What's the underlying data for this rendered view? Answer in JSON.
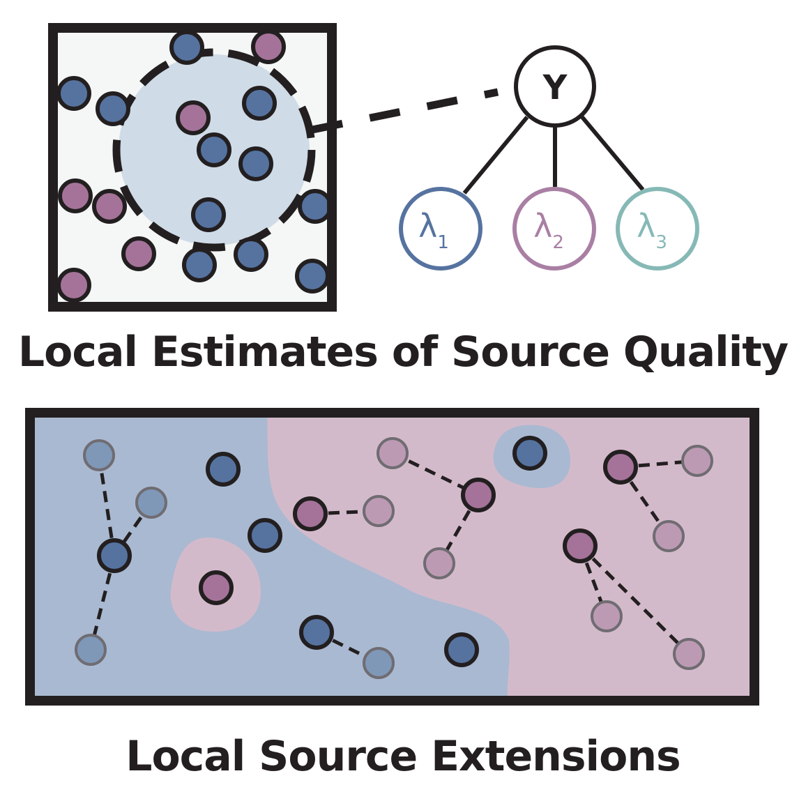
{
  "titles": {
    "top": "Local Estimates of Source Quality",
    "bottom": "Local Source Extensions"
  },
  "graph": {
    "root": "Y",
    "sources": [
      {
        "symbol": "λ",
        "subscript": "1",
        "color": "#5673a0"
      },
      {
        "symbol": "λ",
        "subscript": "2",
        "color": "#a97fa4"
      },
      {
        "symbol": "λ",
        "subscript": "3",
        "color": "#86b9b6"
      }
    ]
  },
  "colors": {
    "blue_point": "#5673a0",
    "pink_point": "#a57399",
    "blue_region": "#a9b9d1",
    "pink_region": "#d3bacb",
    "neighborhood": "#cfdbe6",
    "panel_bg": "#f4f7f6",
    "ink": "#231f20"
  }
}
